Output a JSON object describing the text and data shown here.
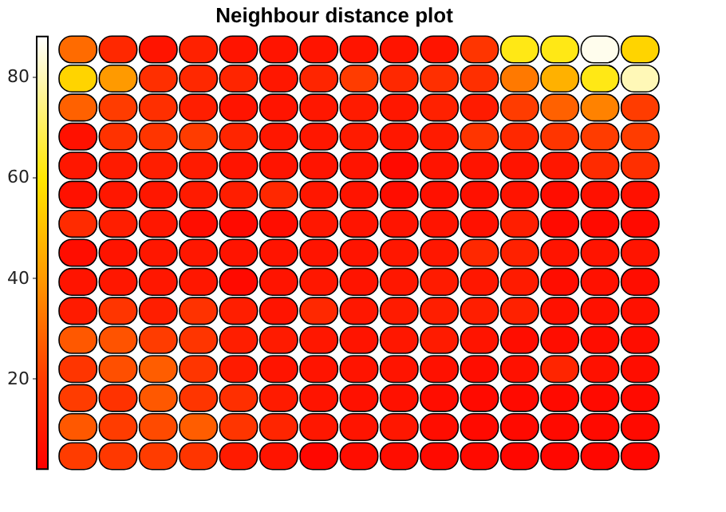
{
  "chart_data": {
    "type": "heatmap",
    "title": "Neighbour distance plot",
    "tick_labels": false,
    "categories": [
      null,
      null,
      null,
      null,
      null,
      null,
      null,
      null,
      null,
      null,
      null,
      null,
      null,
      null,
      null
    ],
    "y_categories": [
      null,
      null,
      null,
      null,
      null,
      null,
      null,
      null,
      null,
      null,
      null,
      null,
      null,
      null,
      null
    ],
    "cells": [
      [
        30,
        14,
        8,
        12,
        8,
        8,
        8,
        8,
        8,
        8,
        18,
        62,
        62,
        86,
        55
      ],
      [
        55,
        40,
        16,
        14,
        13,
        9,
        13,
        20,
        14,
        16,
        16,
        33,
        46,
        62,
        80
      ],
      [
        28,
        20,
        16,
        11,
        8,
        8,
        9,
        10,
        9,
        12,
        10,
        20,
        28,
        35,
        20
      ],
      [
        7,
        17,
        18,
        20,
        13,
        9,
        9,
        10,
        9,
        10,
        18,
        14,
        18,
        20,
        20
      ],
      [
        9,
        10,
        11,
        10,
        8,
        8,
        8,
        8,
        5,
        8,
        8,
        8,
        9,
        15,
        16
      ],
      [
        7,
        9,
        9,
        10,
        11,
        14,
        9,
        8,
        6,
        7,
        7,
        8,
        6,
        7,
        7
      ],
      [
        15,
        11,
        9,
        6,
        5,
        6,
        9,
        8,
        8,
        8,
        7,
        11,
        5,
        5,
        5
      ],
      [
        6,
        8,
        9,
        9,
        8,
        8,
        8,
        8,
        9,
        9,
        14,
        12,
        8,
        8,
        8
      ],
      [
        8,
        9,
        9,
        9,
        5,
        8,
        9,
        8,
        9,
        10,
        9,
        10,
        6,
        7,
        6
      ],
      [
        10,
        18,
        11,
        17,
        11,
        8,
        14,
        9,
        10,
        11,
        11,
        12,
        7,
        7,
        7
      ],
      [
        26,
        25,
        20,
        18,
        11,
        10,
        9,
        8,
        9,
        10,
        8,
        6,
        6,
        6,
        6
      ],
      [
        18,
        24,
        27,
        18,
        10,
        8,
        8,
        8,
        8,
        7,
        6,
        7,
        13,
        7,
        6
      ],
      [
        20,
        17,
        26,
        18,
        16,
        10,
        8,
        7,
        7,
        6,
        5,
        5,
        5,
        5,
        5
      ],
      [
        26,
        20,
        23,
        27,
        18,
        13,
        9,
        8,
        9,
        6,
        5,
        5,
        5,
        5,
        5
      ],
      [
        20,
        19,
        20,
        18,
        10,
        8,
        4,
        6,
        6,
        5,
        5,
        4,
        4,
        4,
        4
      ]
    ],
    "clim": [
      2,
      88
    ],
    "cticks": [
      20,
      40,
      60,
      80
    ]
  }
}
